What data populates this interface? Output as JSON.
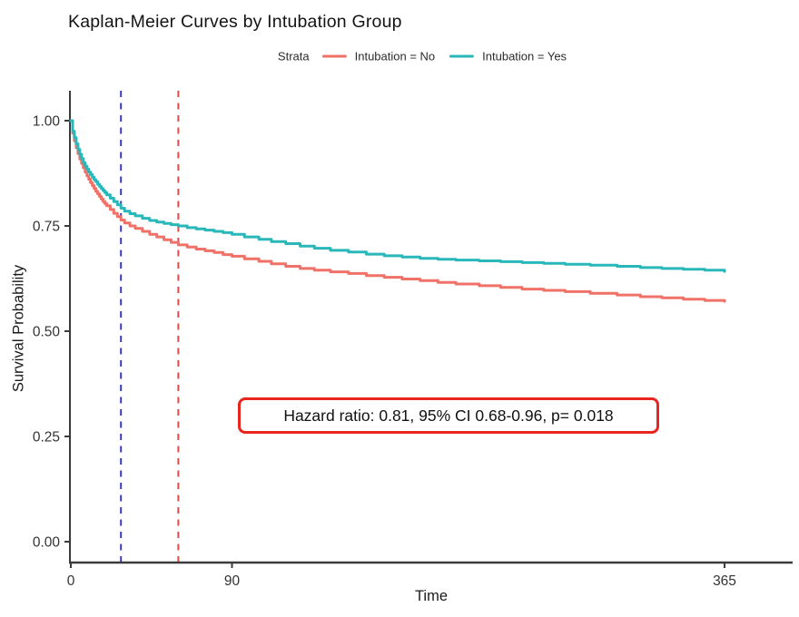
{
  "page": {
    "background": "#ffffff"
  },
  "chart_data": {
    "type": "line",
    "subtype": "kaplan-meier-step-curves",
    "title": "Kaplan-Meier Curves by Intubation Group",
    "xlabel": "Time",
    "ylabel": "Survival Probability",
    "grid": false,
    "legend_position": "top",
    "xlim": [
      0,
      365
    ],
    "ylim": [
      0,
      1
    ],
    "xticks": {
      "values": [
        0,
        90,
        365
      ],
      "labels": [
        "0",
        "90",
        "365"
      ]
    },
    "yticks": {
      "values": [
        1.0,
        0.75,
        0.5,
        0.25,
        0.0
      ],
      "labels": [
        "1.00",
        "0.75",
        "0.50",
        "0.25",
        "0.00"
      ]
    },
    "legend": {
      "title": "Strata",
      "entries": [
        {
          "label": "Intubation = No",
          "color": "#ef7167"
        },
        {
          "label": "Intubation = Yes",
          "color": "#2ab7ba"
        }
      ]
    },
    "axis_color": "#3b3b3b",
    "tick_label_color": "#333333",
    "series": [
      {
        "name": "Intubation = No",
        "color": "#ef7167",
        "step": true,
        "points": [
          [
            0,
            1.0
          ],
          [
            1,
            0.97
          ],
          [
            2,
            0.952
          ],
          [
            3,
            0.936
          ],
          [
            4,
            0.922
          ],
          [
            5,
            0.909
          ],
          [
            6,
            0.898
          ],
          [
            7,
            0.888
          ],
          [
            8,
            0.878
          ],
          [
            9,
            0.869
          ],
          [
            10,
            0.861
          ],
          [
            11,
            0.853
          ],
          [
            12,
            0.846
          ],
          [
            13,
            0.839
          ],
          [
            14,
            0.832
          ],
          [
            15,
            0.826
          ],
          [
            16,
            0.82
          ],
          [
            17,
            0.814
          ],
          [
            18,
            0.808
          ],
          [
            19,
            0.803
          ],
          [
            20,
            0.798
          ],
          [
            22,
            0.789
          ],
          [
            24,
            0.78
          ],
          [
            26,
            0.772
          ],
          [
            28,
            0.764
          ],
          [
            30,
            0.757
          ],
          [
            33,
            0.75
          ],
          [
            36,
            0.744
          ],
          [
            40,
            0.737
          ],
          [
            44,
            0.73
          ],
          [
            48,
            0.724
          ],
          [
            52,
            0.717
          ],
          [
            56,
            0.711
          ],
          [
            60,
            0.705
          ],
          [
            65,
            0.7
          ],
          [
            70,
            0.695
          ],
          [
            75,
            0.691
          ],
          [
            80,
            0.687
          ],
          [
            85,
            0.682
          ],
          [
            90,
            0.678
          ],
          [
            97,
            0.672
          ],
          [
            105,
            0.666
          ],
          [
            112,
            0.66
          ],
          [
            120,
            0.654
          ],
          [
            128,
            0.649
          ],
          [
            136,
            0.645
          ],
          [
            145,
            0.641
          ],
          [
            155,
            0.637
          ],
          [
            165,
            0.632
          ],
          [
            175,
            0.628
          ],
          [
            185,
            0.624
          ],
          [
            195,
            0.62
          ],
          [
            205,
            0.616
          ],
          [
            215,
            0.612
          ],
          [
            228,
            0.608
          ],
          [
            240,
            0.604
          ],
          [
            252,
            0.6
          ],
          [
            264,
            0.597
          ],
          [
            276,
            0.594
          ],
          [
            290,
            0.59
          ],
          [
            305,
            0.586
          ],
          [
            318,
            0.582
          ],
          [
            330,
            0.579
          ],
          [
            342,
            0.576
          ],
          [
            354,
            0.573
          ],
          [
            365,
            0.571
          ]
        ]
      },
      {
        "name": "Intubation = Yes",
        "color": "#2ab7ba",
        "step": true,
        "points": [
          [
            0,
            1.0
          ],
          [
            1,
            0.975
          ],
          [
            2,
            0.96
          ],
          [
            3,
            0.945
          ],
          [
            4,
            0.932
          ],
          [
            5,
            0.92
          ],
          [
            6,
            0.91
          ],
          [
            7,
            0.9
          ],
          [
            8,
            0.892
          ],
          [
            9,
            0.885
          ],
          [
            10,
            0.878
          ],
          [
            11,
            0.872
          ],
          [
            12,
            0.866
          ],
          [
            13,
            0.86
          ],
          [
            14,
            0.855
          ],
          [
            15,
            0.849
          ],
          [
            16,
            0.844
          ],
          [
            17,
            0.839
          ],
          [
            18,
            0.834
          ],
          [
            19,
            0.829
          ],
          [
            20,
            0.824
          ],
          [
            22,
            0.816
          ],
          [
            24,
            0.808
          ],
          [
            26,
            0.8
          ],
          [
            28,
            0.792
          ],
          [
            30,
            0.785
          ],
          [
            33,
            0.779
          ],
          [
            36,
            0.774
          ],
          [
            40,
            0.768
          ],
          [
            44,
            0.763
          ],
          [
            48,
            0.759
          ],
          [
            52,
            0.756
          ],
          [
            56,
            0.753
          ],
          [
            60,
            0.75
          ],
          [
            65,
            0.746
          ],
          [
            70,
            0.743
          ],
          [
            75,
            0.74
          ],
          [
            80,
            0.737
          ],
          [
            85,
            0.734
          ],
          [
            90,
            0.73
          ],
          [
            97,
            0.724
          ],
          [
            105,
            0.718
          ],
          [
            112,
            0.713
          ],
          [
            120,
            0.708
          ],
          [
            128,
            0.702
          ],
          [
            136,
            0.697
          ],
          [
            145,
            0.692
          ],
          [
            155,
            0.688
          ],
          [
            165,
            0.683
          ],
          [
            175,
            0.679
          ],
          [
            185,
            0.676
          ],
          [
            195,
            0.673
          ],
          [
            205,
            0.671
          ],
          [
            215,
            0.669
          ],
          [
            228,
            0.667
          ],
          [
            240,
            0.665
          ],
          [
            252,
            0.663
          ],
          [
            264,
            0.661
          ],
          [
            276,
            0.659
          ],
          [
            290,
            0.657
          ],
          [
            305,
            0.654
          ],
          [
            318,
            0.651
          ],
          [
            330,
            0.649
          ],
          [
            342,
            0.647
          ],
          [
            354,
            0.645
          ],
          [
            365,
            0.642
          ]
        ]
      }
    ],
    "vlines": [
      {
        "x": 28,
        "color": "#3a3ac2",
        "style": "dashed"
      },
      {
        "x": 60,
        "color": "#de4c4c",
        "style": "dashed"
      }
    ],
    "annotation": {
      "text": "Hazard ratio: 0.81, 95% CI 0.68-0.96, p= 0.018",
      "border_color": "#e8251f"
    }
  }
}
